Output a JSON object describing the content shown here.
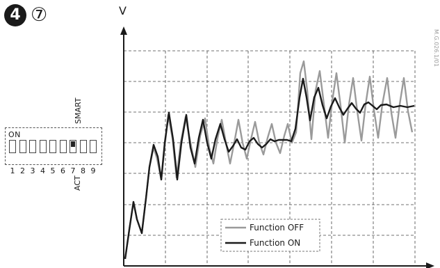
{
  "step": {
    "number": "4",
    "sub_number": "⑦"
  },
  "dip_switch": {
    "on_label": "ON",
    "smart_label": "SMART",
    "act_label": "ACT",
    "switches": [
      "1",
      "2",
      "3",
      "4",
      "5",
      "6",
      "7",
      "8",
      "9"
    ],
    "active_switch": 7
  },
  "doc_code": "M.G.026.1/01",
  "chart": {
    "y_axis_label": "V",
    "legend": {
      "off_label": "Function OFF",
      "on_label": "Function ON"
    },
    "colors": {
      "off": "#9a9a9a",
      "on": "#1a1a1a"
    }
  }
}
